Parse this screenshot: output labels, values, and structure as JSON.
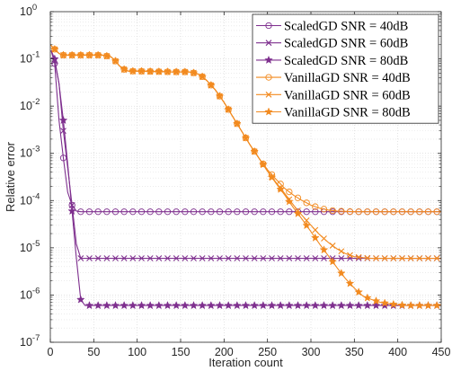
{
  "chart_data": {
    "type": "line",
    "xlabel": "Iteration count",
    "ylabel": "Relative error",
    "xlim": [
      0,
      450
    ],
    "ylim_exponents": [
      -7,
      0
    ],
    "yscale": "log",
    "x_ticks": [
      "0",
      "50",
      "100",
      "150",
      "200",
      "250",
      "300",
      "350",
      "400",
      "450"
    ],
    "y_tick_base": "10",
    "y_tick_exponents": [
      "0",
      "-1",
      "-2",
      "-3",
      "-4",
      "-5",
      "-6",
      "-7"
    ],
    "grid": true,
    "legend_position": "top-right",
    "colors": {
      "scaled": "#7e2f8e",
      "vanilla": "#f28a1f"
    },
    "series": [
      {
        "name": "ScaledGD SNR = 40dB",
        "color": "#7e2f8e",
        "marker": "circle",
        "x": [
          1,
          5,
          10,
          15,
          20,
          25,
          30,
          35,
          40,
          60,
          100,
          200,
          300,
          400,
          450
        ],
        "y": [
          0.15,
          0.08,
          0.005,
          0.0008,
          0.00015,
          8e-05,
          6e-05,
          5.8e-05,
          5.8e-05,
          5.8e-05,
          5.8e-05,
          5.8e-05,
          5.8e-05,
          5.8e-05,
          5.8e-05
        ]
      },
      {
        "name": "ScaledGD SNR = 60dB",
        "color": "#7e2f8e",
        "marker": "x",
        "x": [
          1,
          5,
          10,
          15,
          20,
          25,
          30,
          35,
          40,
          60,
          100,
          200,
          300,
          400,
          450
        ],
        "y": [
          0.15,
          0.09,
          0.03,
          0.003,
          0.0005,
          8e-05,
          1.2e-05,
          6e-06,
          6e-06,
          6e-06,
          6e-06,
          6e-06,
          6e-06,
          6e-06,
          6e-06
        ]
      },
      {
        "name": "ScaledGD SNR = 80dB",
        "color": "#7e2f8e",
        "marker": "star",
        "x": [
          1,
          5,
          10,
          15,
          20,
          25,
          30,
          35,
          40,
          60,
          100,
          200,
          300,
          400,
          450
        ],
        "y": [
          0.15,
          0.1,
          0.03,
          0.005,
          0.0006,
          6e-05,
          6e-06,
          8e-07,
          6e-07,
          6e-07,
          6e-07,
          6e-07,
          6e-07,
          6e-07,
          6e-07
        ]
      },
      {
        "name": "VanillaGD SNR = 40dB",
        "color": "#f28a1f",
        "marker": "circle",
        "x": [
          0,
          5,
          10,
          15,
          20,
          50,
          60,
          70,
          75,
          80,
          85,
          90,
          95,
          100,
          140,
          160,
          170,
          175,
          180,
          190,
          200,
          210,
          220,
          230,
          240,
          250,
          260,
          270,
          280,
          290,
          300,
          310,
          320,
          330,
          340,
          350,
          360,
          400,
          450
        ],
        "y": [
          0.2,
          0.16,
          0.13,
          0.12,
          0.12,
          0.12,
          0.12,
          0.11,
          0.09,
          0.07,
          0.06,
          0.055,
          0.055,
          0.055,
          0.053,
          0.053,
          0.048,
          0.042,
          0.035,
          0.022,
          0.012,
          0.006,
          0.003,
          0.0015,
          0.0008,
          0.00045,
          0.00028,
          0.00018,
          0.00013,
          0.0001,
          8e-05,
          6.9e-05,
          6.3e-05,
          6e-05,
          5.9e-05,
          5.8e-05,
          5.8e-05,
          5.8e-05,
          5.8e-05
        ]
      },
      {
        "name": "VanillaGD SNR = 60dB",
        "color": "#f28a1f",
        "marker": "x",
        "x": [
          0,
          5,
          10,
          15,
          20,
          50,
          60,
          70,
          75,
          80,
          85,
          90,
          95,
          100,
          140,
          160,
          170,
          175,
          180,
          190,
          200,
          210,
          220,
          230,
          240,
          250,
          260,
          270,
          280,
          290,
          300,
          310,
          320,
          330,
          340,
          350,
          360,
          370,
          380,
          400,
          450
        ],
        "y": [
          0.2,
          0.16,
          0.13,
          0.12,
          0.12,
          0.12,
          0.12,
          0.11,
          0.09,
          0.07,
          0.06,
          0.055,
          0.055,
          0.055,
          0.053,
          0.053,
          0.048,
          0.042,
          0.035,
          0.022,
          0.012,
          0.006,
          0.003,
          0.0015,
          0.0008,
          0.00042,
          0.00024,
          0.00014,
          8e-05,
          4.8e-05,
          3e-05,
          1.9e-05,
          1.3e-05,
          9.5e-06,
          7.5e-06,
          6.5e-06,
          6.2e-06,
          6e-06,
          6e-06,
          6e-06,
          6e-06
        ]
      },
      {
        "name": "VanillaGD SNR = 80dB",
        "color": "#f28a1f",
        "marker": "star",
        "x": [
          0,
          5,
          10,
          15,
          20,
          50,
          60,
          70,
          75,
          80,
          85,
          90,
          95,
          100,
          140,
          160,
          170,
          175,
          180,
          190,
          200,
          210,
          220,
          230,
          240,
          250,
          260,
          270,
          280,
          290,
          300,
          310,
          320,
          330,
          340,
          350,
          360,
          370,
          380,
          390,
          400,
          410,
          420,
          430,
          440,
          450
        ],
        "y": [
          0.2,
          0.16,
          0.13,
          0.12,
          0.12,
          0.12,
          0.12,
          0.11,
          0.09,
          0.07,
          0.06,
          0.055,
          0.055,
          0.055,
          0.053,
          0.053,
          0.048,
          0.042,
          0.035,
          0.022,
          0.012,
          0.006,
          0.003,
          0.0015,
          0.0008,
          0.00042,
          0.00023,
          0.00013,
          7e-05,
          4e-05,
          2.2e-05,
          1.2e-05,
          6.8e-06,
          3.8e-06,
          2.2e-06,
          1.4e-06,
          9.5e-07,
          8e-07,
          7e-07,
          6.5e-07,
          6.2e-07,
          6e-07,
          6e-07,
          6e-07,
          6e-07,
          6e-07
        ]
      }
    ]
  }
}
